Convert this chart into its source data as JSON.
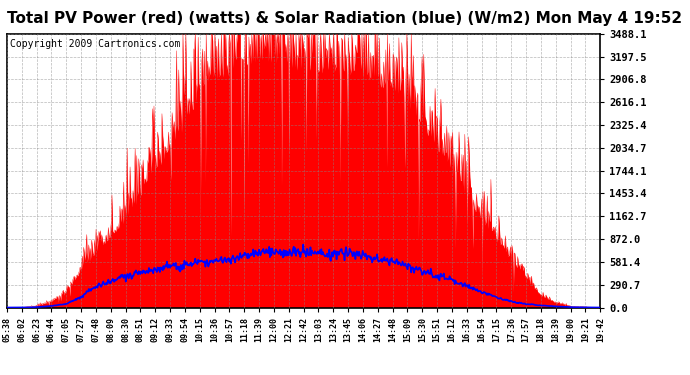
{
  "title": "Total PV Power (red) (watts) & Solar Radiation (blue) (W/m2) Mon May 4 19:52",
  "copyright": "Copyright 2009 Cartronics.com",
  "yticks": [
    0.0,
    290.7,
    581.4,
    872.0,
    1162.7,
    1453.4,
    1744.1,
    2034.7,
    2325.4,
    2616.1,
    2906.8,
    3197.5,
    3488.1
  ],
  "ymax": 3488.1,
  "pv_color": "#FF0000",
  "solar_color": "#0000FF",
  "bg_color": "#FFFFFF",
  "plot_bg": "#FFFFFF",
  "grid_color": "#888888",
  "title_fontsize": 11,
  "copyright_fontsize": 7,
  "xtick_labels": [
    "05:38",
    "06:02",
    "06:23",
    "06:44",
    "07:05",
    "07:27",
    "07:48",
    "08:09",
    "08:30",
    "08:51",
    "09:12",
    "09:33",
    "09:54",
    "10:15",
    "10:36",
    "10:57",
    "11:18",
    "11:39",
    "12:00",
    "12:21",
    "12:42",
    "13:03",
    "13:24",
    "13:45",
    "14:06",
    "14:27",
    "14:48",
    "15:09",
    "15:30",
    "15:51",
    "16:12",
    "16:33",
    "16:54",
    "17:15",
    "17:36",
    "17:57",
    "18:18",
    "18:39",
    "19:00",
    "19:21",
    "19:42"
  ],
  "pv_envelope": [
    0,
    0,
    20,
    80,
    200,
    450,
    700,
    900,
    1100,
    1400,
    1700,
    2000,
    2300,
    2700,
    2900,
    2950,
    3050,
    3100,
    3100,
    3050,
    3000,
    3000,
    2950,
    2950,
    2900,
    2800,
    2700,
    2550,
    2300,
    2000,
    1700,
    1400,
    1100,
    850,
    600,
    350,
    150,
    60,
    15,
    5,
    0
  ],
  "solar_envelope": [
    0,
    0,
    5,
    20,
    50,
    150,
    280,
    370,
    420,
    460,
    490,
    520,
    540,
    560,
    590,
    610,
    630,
    650,
    660,
    660,
    655,
    650,
    645,
    640,
    620,
    600,
    580,
    540,
    490,
    430,
    360,
    280,
    200,
    140,
    90,
    55,
    30,
    15,
    5,
    2,
    0
  ]
}
